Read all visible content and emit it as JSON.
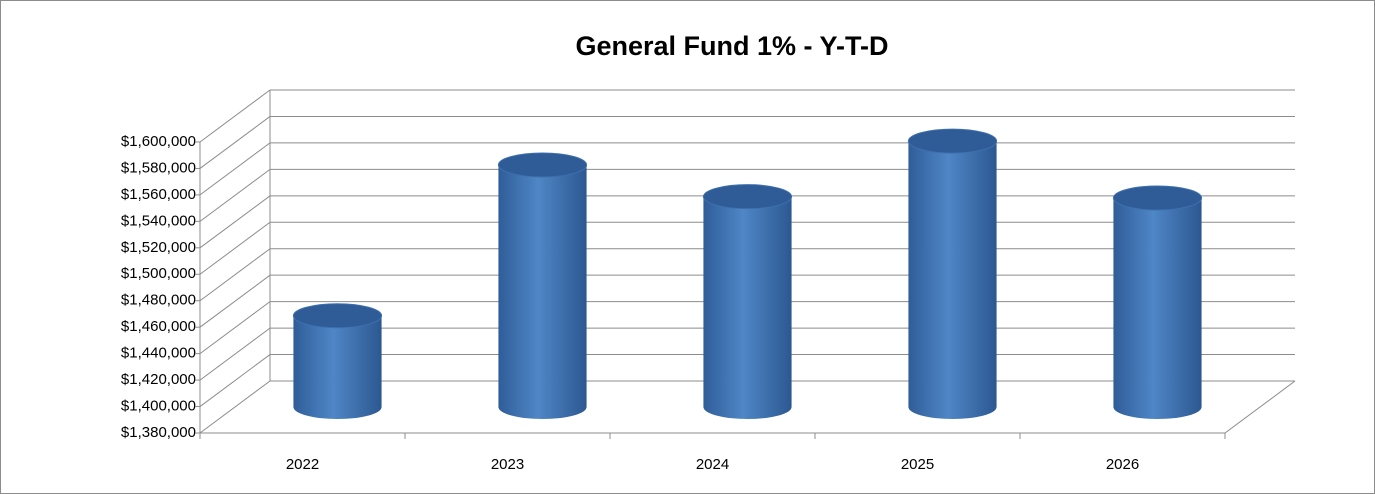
{
  "chart_data": {
    "type": "bar3d",
    "title": "General Fund 1% - Y-T-D",
    "categories": [
      "2022",
      "2023",
      "2024",
      "2025",
      "2026"
    ],
    "values": [
      1449000,
      1563000,
      1539000,
      1581000,
      1538000
    ],
    "color": "#4a7ebb",
    "ylim": [
      1380000,
      1600000
    ],
    "yticks": [
      {
        "value": 1380000,
        "label": "$1,380,000"
      },
      {
        "value": 1400000,
        "label": "$1,400,000"
      },
      {
        "value": 1420000,
        "label": "$1,420,000"
      },
      {
        "value": 1440000,
        "label": "$1,440,000"
      },
      {
        "value": 1460000,
        "label": "$1,460,000"
      },
      {
        "value": 1480000,
        "label": "$1,480,000"
      },
      {
        "value": 1500000,
        "label": "$1,500,000"
      },
      {
        "value": 1520000,
        "label": "$1,520,000"
      },
      {
        "value": 1540000,
        "label": "$1,540,000"
      },
      {
        "value": 1560000,
        "label": "$1,560,000"
      },
      {
        "value": 1580000,
        "label": "$1,580,000"
      },
      {
        "value": 1600000,
        "label": "$1,600,000"
      }
    ],
    "grid": true
  }
}
